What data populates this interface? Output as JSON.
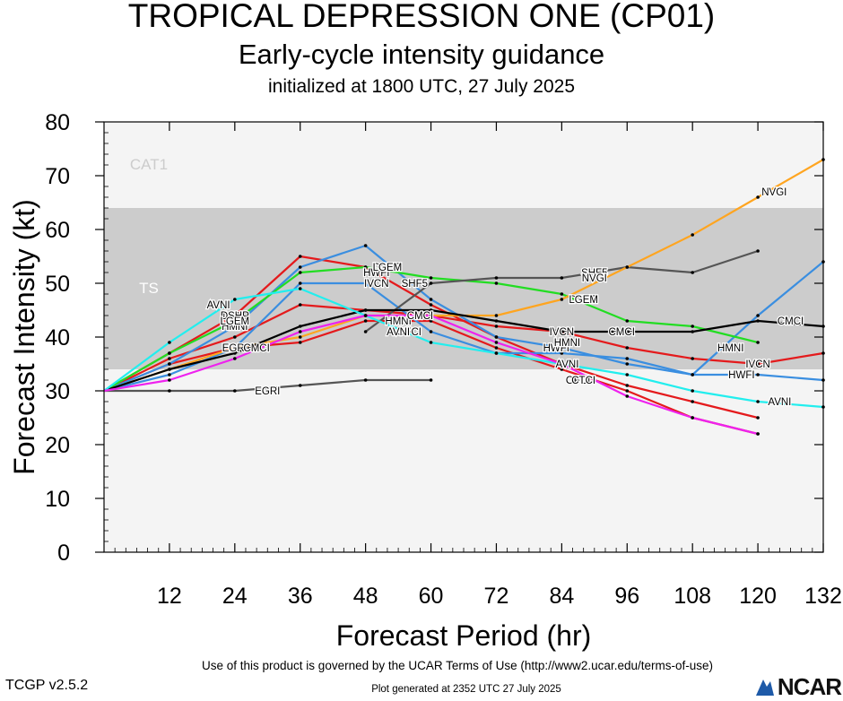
{
  "header": {
    "title": "TROPICAL DEPRESSION ONE (CP01)",
    "subtitle": "Early-cycle intensity guidance",
    "initialized": "initialized at 1800 UTC, 27 July 2025"
  },
  "footer": {
    "terms": "Use of this product is governed by the UCAR Terms of Use (http://www2.ucar.edu/terms-of-use)",
    "version": "TCGP v2.5.2",
    "generated": "Plot generated at 2352 UTC   27 July 2025",
    "logo": "NCAR"
  },
  "colors": {
    "plot_background": "#f4f4f4",
    "ts_band": "#cccccc",
    "black": "#000000",
    "red": "#e41a1c",
    "blue": "#3a8ee0",
    "green": "#22dd22",
    "cyan": "#22eeee",
    "magenta": "#ee22ee",
    "orange": "#ffa520",
    "gray": "#555555"
  },
  "chart_data": {
    "type": "line",
    "xlabel": "Forecast Period (hr)",
    "ylabel": "Forecast Intensity (kt)",
    "xlim": [
      0,
      132
    ],
    "ylim": [
      0,
      80
    ],
    "xticks": [
      12,
      24,
      36,
      48,
      60,
      72,
      84,
      96,
      108,
      120,
      132
    ],
    "yticks": [
      0,
      10,
      20,
      30,
      40,
      50,
      60,
      70,
      80
    ],
    "grid": false,
    "bands": [
      {
        "label": "TS",
        "from": 34,
        "to": 64,
        "color": "#cccccc",
        "label_color": "#ffffff"
      },
      {
        "label": "CAT1",
        "from": 64,
        "to": 83,
        "color": "#f4f4f4",
        "label_color": "#cccccc"
      }
    ],
    "series": [
      {
        "name": "OFCI",
        "color": "#e41a1c",
        "x": [
          0,
          12,
          24,
          36,
          48,
          60,
          72,
          84,
          96,
          108,
          120
        ],
        "y": [
          30,
          37,
          44,
          55,
          53,
          46,
          40,
          35,
          31,
          28,
          25
        ],
        "label_at": [
          [
            56,
            41
          ],
          [
            87,
            32
          ]
        ]
      },
      {
        "name": "IVCN",
        "color": "#e41a1c",
        "x": [
          0,
          12,
          24,
          36,
          48,
          60,
          72,
          84,
          96,
          108,
          120,
          132
        ],
        "y": [
          30,
          36,
          40,
          46,
          45,
          44,
          42,
          41,
          38,
          36,
          35,
          37
        ],
        "label_at": [
          [
            24,
            44
          ],
          [
            50,
            50
          ],
          [
            84,
            41
          ],
          [
            120,
            35
          ]
        ]
      },
      {
        "name": "DSHP",
        "color": "#e41a1c",
        "x": [
          0,
          12,
          24,
          36,
          48,
          60,
          72,
          84,
          96,
          108,
          120
        ],
        "y": [
          30,
          35,
          38,
          39,
          43,
          43,
          38,
          34,
          30,
          25,
          22
        ],
        "label_at": [
          [
            24,
            44
          ],
          [
            52,
            53
          ],
          [
            88,
            47
          ]
        ]
      },
      {
        "name": "HWFI",
        "color": "#3a8ee0",
        "x": [
          0,
          12,
          24,
          36,
          48,
          60,
          72,
          84,
          96,
          108,
          120,
          132
        ],
        "y": [
          30,
          35,
          42,
          53,
          57,
          47,
          40,
          38,
          35,
          33,
          44,
          54
        ],
        "label_at": [
          [
            50,
            52
          ],
          [
            83,
            38
          ],
          [
            117,
            33
          ]
        ]
      },
      {
        "name": "HMNI",
        "color": "#3a8ee0",
        "x": [
          0,
          12,
          24,
          36,
          48,
          60,
          72,
          84,
          96,
          108,
          120,
          132
        ],
        "y": [
          30,
          33,
          38,
          50,
          50,
          41,
          37,
          37,
          36,
          33,
          33,
          32
        ],
        "label_at": [
          [
            24,
            42
          ],
          [
            54,
            43
          ],
          [
            85,
            39
          ],
          [
            115,
            38
          ]
        ]
      },
      {
        "name": "LGEM",
        "color": "#22dd22",
        "x": [
          0,
          12,
          24,
          36,
          48,
          60,
          72,
          84,
          96,
          108,
          120
        ],
        "y": [
          30,
          37,
          43,
          52,
          53,
          51,
          50,
          48,
          43,
          42,
          39
        ],
        "label_at": [
          [
            24,
            43
          ],
          [
            52,
            53
          ],
          [
            88,
            47
          ]
        ]
      },
      {
        "name": "SHF5",
        "color": "#555555",
        "x": [
          48,
          60,
          72,
          84,
          96,
          108,
          120
        ],
        "y": [
          41,
          50,
          51,
          51,
          53,
          52,
          56
        ],
        "label_at": [
          [
            57,
            50
          ],
          [
            90,
            52
          ]
        ]
      },
      {
        "name": "EGRI",
        "color": "#555555",
        "x": [
          0,
          12,
          24,
          36,
          48,
          60
        ],
        "y": [
          30,
          30,
          30,
          31,
          32,
          32
        ],
        "label_at": [
          [
            24,
            38
          ],
          [
            30,
            30
          ]
        ]
      },
      {
        "name": "NVGI",
        "color": "#ffa520",
        "x": [
          0,
          12,
          24,
          36,
          48,
          60,
          72,
          84,
          96,
          108,
          120,
          132
        ],
        "y": [
          30,
          34,
          38,
          40,
          44,
          44,
          44,
          47,
          53,
          59,
          66,
          73
        ],
        "label_at": [
          [
            90,
            51
          ],
          [
            123,
            67
          ]
        ]
      },
      {
        "name": "CMCI",
        "color": "#000000",
        "x": [
          0,
          12,
          24,
          36,
          48,
          60,
          72,
          84,
          96,
          108,
          120,
          132
        ],
        "y": [
          30,
          34,
          37,
          42,
          45,
          45,
          43,
          41,
          41,
          41,
          43,
          42
        ],
        "label_at": [
          [
            28,
            38
          ],
          [
            58,
            44
          ],
          [
            95,
            41
          ],
          [
            126,
            43
          ]
        ]
      },
      {
        "name": "AVNI",
        "color": "#22eeee",
        "x": [
          0,
          12,
          24,
          36,
          48,
          60,
          72,
          84,
          96,
          108,
          120,
          132
        ],
        "y": [
          30,
          39,
          47,
          49,
          44,
          39,
          37,
          35,
          33,
          30,
          28,
          27
        ],
        "label_at": [
          [
            21,
            46
          ],
          [
            54,
            41
          ],
          [
            85,
            35
          ],
          [
            124,
            28
          ]
        ]
      },
      {
        "name": "CTCI",
        "color": "#ee22ee",
        "x": [
          0,
          12,
          24,
          36,
          48,
          60,
          72,
          84,
          96,
          108,
          120
        ],
        "y": [
          30,
          32,
          36,
          41,
          44,
          44,
          39,
          35,
          29,
          25,
          22
        ],
        "label_at": [
          [
            88,
            32
          ]
        ]
      }
    ]
  }
}
